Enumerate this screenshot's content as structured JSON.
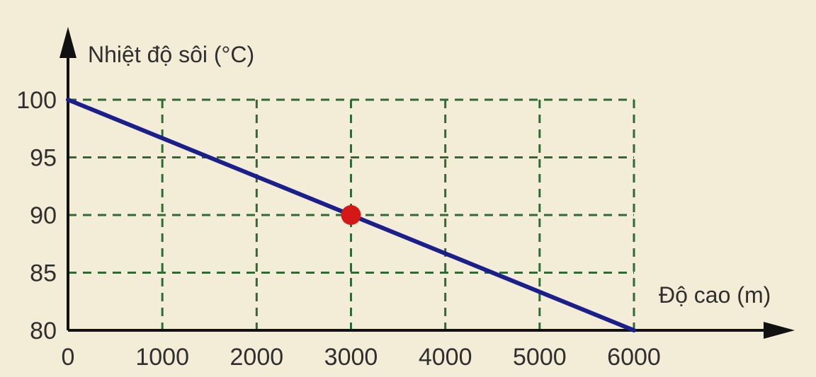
{
  "chart_data": {
    "type": "line",
    "xlabel": "Độ cao (m)",
    "ylabel": "Nhiệt độ sôi (°C)",
    "x_ticks": [
      "0",
      "1000",
      "2000",
      "3000",
      "4000",
      "5000",
      "6000"
    ],
    "y_ticks": [
      "80",
      "85",
      "90",
      "95",
      "100"
    ],
    "xlim": [
      0,
      6000
    ],
    "ylim": [
      80,
      100
    ],
    "grid": true,
    "series": [
      {
        "x": [
          0,
          6000
        ],
        "y": [
          100,
          80
        ]
      }
    ],
    "highlight_point": {
      "x": 3000,
      "y": 90
    },
    "colors": {
      "line": "#1a1f8c",
      "point": "#d41818",
      "grid": "#2f6a33",
      "axis": "#111111",
      "background": "#f3ecd6"
    }
  }
}
